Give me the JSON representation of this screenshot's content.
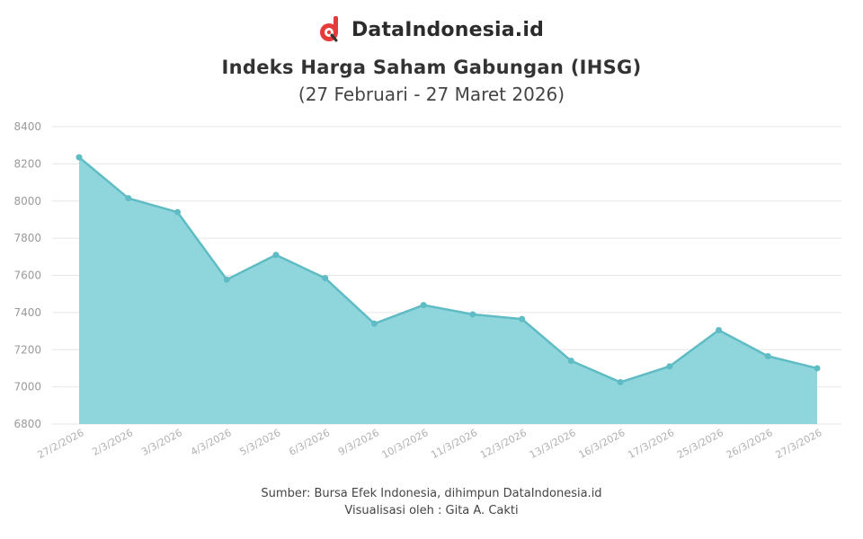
{
  "brand": {
    "name": "DataIndonesia.id",
    "logo_icon": "dataindonesia-logo-icon",
    "accent": "#e63b3b"
  },
  "header": {
    "title": "Indeks Harga Saham Gabungan (IHSG)",
    "subtitle": "(27 Februari - 27 Maret 2026)"
  },
  "footer": {
    "source": "Sumber: Bursa Efek Indonesia, dihimpun DataIndonesia.id",
    "credit": "Visualisasi oleh : Gita A. Cakti"
  },
  "chart_data": {
    "type": "area",
    "categories": [
      "27/2/2026",
      "2/3/2026",
      "3/3/2026",
      "4/3/2026",
      "5/3/2026",
      "6/3/2026",
      "9/3/2026",
      "10/3/2026",
      "11/3/2026",
      "12/3/2026",
      "13/3/2026",
      "16/3/2026",
      "17/3/2026",
      "25/3/2026",
      "26/3/2026",
      "27/3/2026"
    ],
    "values": [
      8235,
      8015,
      7940,
      7577,
      7710,
      7585,
      7340,
      7440,
      7390,
      7365,
      7140,
      7025,
      7110,
      7305,
      7165,
      7100
    ],
    "ylim": [
      6800,
      8400
    ],
    "yticks": [
      6800,
      7000,
      7200,
      7400,
      7600,
      7800,
      8000,
      8200,
      8400
    ],
    "grid": true,
    "legend": "none",
    "colors": {
      "fill": "#8fd6dc",
      "line": "#5fbcc4",
      "marker": "#5fbcc4",
      "grid": "#e6e6e6"
    }
  }
}
